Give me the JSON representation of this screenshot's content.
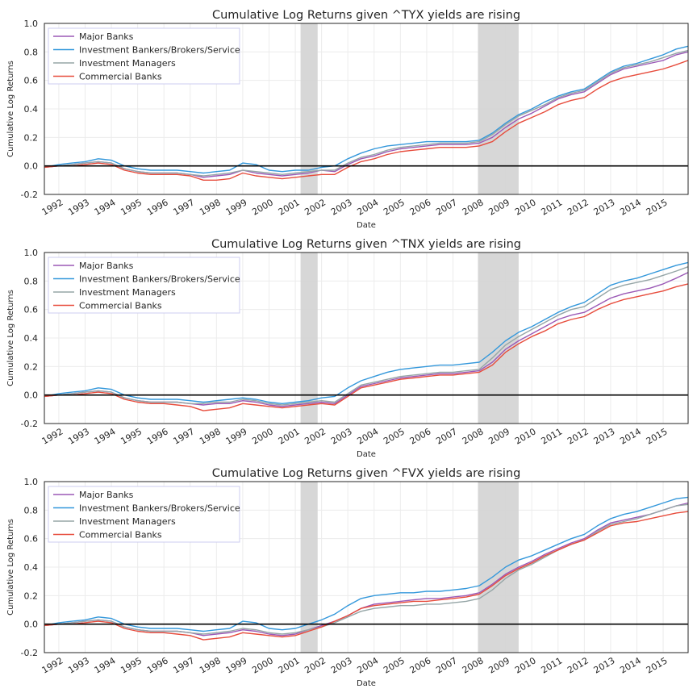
{
  "colors": {
    "major_banks": "#9b59b6",
    "investment_bankers": "#3498db",
    "investment_managers": "#95a5a6",
    "commercial_banks": "#e74c3c",
    "recession_shading": "#d5d5d5",
    "zero_line": "#000000",
    "grid": "#ececec",
    "legend_border": "#ccccf0"
  },
  "chart_data": [
    {
      "type": "line",
      "title": "Cumulative Log Returns given ^TYX yields are rising",
      "xlabel": "Date",
      "ylabel": "Cumulative Log Returns",
      "xlim": [
        1991.45,
        2015.95
      ],
      "ylim": [
        -0.2,
        1.0
      ],
      "yticks": [
        "-0.2",
        "0.0",
        "0.2",
        "0.4",
        "0.6",
        "0.8",
        "1.0"
      ],
      "xticks": [
        "1992",
        "1993",
        "1994",
        "1995",
        "1996",
        "1997",
        "1998",
        "1999",
        "2000",
        "2001",
        "2002",
        "2003",
        "2004",
        "2005",
        "2006",
        "2007",
        "2008",
        "2009",
        "2010",
        "2011",
        "2012",
        "2013",
        "2014",
        "2015"
      ],
      "grid": true,
      "legend_position": "upper-left",
      "reference_line_y": 0.0,
      "shaded_periods": [
        [
          2001.2,
          2001.85
        ],
        [
          2007.95,
          2009.5
        ]
      ],
      "x": [
        1991.45,
        1992.0,
        1992.5,
        1993.0,
        1993.5,
        1994.0,
        1994.5,
        1995.0,
        1995.5,
        1996.0,
        1996.5,
        1997.0,
        1997.5,
        1998.0,
        1998.5,
        1999.0,
        1999.5,
        2000.0,
        2000.5,
        2001.0,
        2001.5,
        2002.0,
        2002.5,
        2003.0,
        2003.5,
        2004.0,
        2004.5,
        2005.0,
        2005.5,
        2006.0,
        2006.5,
        2007.0,
        2007.5,
        2008.0,
        2008.5,
        2009.0,
        2009.5,
        2010.0,
        2010.5,
        2011.0,
        2011.5,
        2012.0,
        2012.5,
        2013.0,
        2013.5,
        2014.0,
        2014.5,
        2015.0,
        2015.5,
        2015.95
      ],
      "series": [
        {
          "name": "Major Banks",
          "values": [
            -0.01,
            0.0,
            0.01,
            0.02,
            0.03,
            0.02,
            -0.02,
            -0.04,
            -0.05,
            -0.05,
            -0.05,
            -0.06,
            -0.08,
            -0.07,
            -0.06,
            -0.03,
            -0.05,
            -0.06,
            -0.07,
            -0.06,
            -0.05,
            -0.03,
            -0.04,
            0.01,
            0.05,
            0.07,
            0.1,
            0.12,
            0.13,
            0.14,
            0.15,
            0.15,
            0.15,
            0.16,
            0.2,
            0.27,
            0.33,
            0.37,
            0.42,
            0.47,
            0.5,
            0.52,
            0.58,
            0.64,
            0.68,
            0.7,
            0.72,
            0.74,
            0.78,
            0.8
          ]
        },
        {
          "name": "Investment Bankers/Brokers/Service",
          "values": [
            -0.01,
            0.01,
            0.02,
            0.03,
            0.05,
            0.04,
            0.0,
            -0.02,
            -0.03,
            -0.03,
            -0.03,
            -0.04,
            -0.05,
            -0.04,
            -0.03,
            0.02,
            0.01,
            -0.03,
            -0.04,
            -0.03,
            -0.03,
            -0.01,
            0.0,
            0.05,
            0.09,
            0.12,
            0.14,
            0.15,
            0.16,
            0.17,
            0.17,
            0.17,
            0.17,
            0.18,
            0.23,
            0.3,
            0.36,
            0.4,
            0.45,
            0.49,
            0.52,
            0.54,
            0.6,
            0.66,
            0.7,
            0.72,
            0.75,
            0.78,
            0.82,
            0.84
          ]
        },
        {
          "name": "Investment Managers",
          "values": [
            -0.01,
            0.0,
            0.01,
            0.02,
            0.03,
            0.02,
            -0.02,
            -0.04,
            -0.05,
            -0.05,
            -0.05,
            -0.06,
            -0.07,
            -0.06,
            -0.05,
            -0.03,
            -0.04,
            -0.05,
            -0.06,
            -0.05,
            -0.04,
            -0.03,
            -0.03,
            0.02,
            0.06,
            0.08,
            0.11,
            0.13,
            0.14,
            0.15,
            0.16,
            0.16,
            0.16,
            0.17,
            0.22,
            0.29,
            0.35,
            0.39,
            0.43,
            0.48,
            0.51,
            0.53,
            0.59,
            0.65,
            0.69,
            0.71,
            0.73,
            0.76,
            0.79,
            0.81
          ]
        },
        {
          "name": "Commercial Banks",
          "values": [
            -0.01,
            0.0,
            0.0,
            0.01,
            0.02,
            0.01,
            -0.03,
            -0.05,
            -0.06,
            -0.06,
            -0.06,
            -0.07,
            -0.1,
            -0.1,
            -0.09,
            -0.05,
            -0.07,
            -0.08,
            -0.09,
            -0.08,
            -0.07,
            -0.06,
            -0.06,
            -0.01,
            0.03,
            0.05,
            0.08,
            0.1,
            0.11,
            0.12,
            0.13,
            0.13,
            0.13,
            0.14,
            0.17,
            0.24,
            0.3,
            0.34,
            0.38,
            0.43,
            0.46,
            0.48,
            0.54,
            0.59,
            0.62,
            0.64,
            0.66,
            0.68,
            0.71,
            0.74
          ]
        }
      ]
    },
    {
      "type": "line",
      "title": "Cumulative Log Returns given ^TNX yields are rising",
      "xlabel": "Date",
      "ylabel": "Cumulative Log Returns",
      "xlim": [
        1991.45,
        2015.95
      ],
      "ylim": [
        -0.2,
        1.0
      ],
      "yticks": [
        "-0.2",
        "0.0",
        "0.2",
        "0.4",
        "0.6",
        "0.8",
        "1.0"
      ],
      "xticks": [
        "1992",
        "1993",
        "1994",
        "1995",
        "1996",
        "1997",
        "1998",
        "1999",
        "2000",
        "2001",
        "2002",
        "2003",
        "2004",
        "2005",
        "2006",
        "2007",
        "2008",
        "2009",
        "2010",
        "2011",
        "2012",
        "2013",
        "2014",
        "2015"
      ],
      "grid": true,
      "legend_position": "upper-left",
      "reference_line_y": 0.0,
      "shaded_periods": [
        [
          2001.2,
          2001.85
        ],
        [
          2007.95,
          2009.5
        ]
      ],
      "x": [
        1991.45,
        1992.0,
        1992.5,
        1993.0,
        1993.5,
        1994.0,
        1994.5,
        1995.0,
        1995.5,
        1996.0,
        1996.5,
        1997.0,
        1997.5,
        1998.0,
        1998.5,
        1999.0,
        1999.5,
        2000.0,
        2000.5,
        2001.0,
        2001.5,
        2002.0,
        2002.5,
        2003.0,
        2003.5,
        2004.0,
        2004.5,
        2005.0,
        2005.5,
        2006.0,
        2006.5,
        2007.0,
        2007.5,
        2008.0,
        2008.5,
        2009.0,
        2009.5,
        2010.0,
        2010.5,
        2011.0,
        2011.5,
        2012.0,
        2012.5,
        2013.0,
        2013.5,
        2014.0,
        2014.5,
        2015.0,
        2015.5,
        2015.95
      ],
      "series": [
        {
          "name": "Major Banks",
          "values": [
            -0.01,
            0.0,
            0.01,
            0.02,
            0.03,
            0.02,
            -0.02,
            -0.04,
            -0.05,
            -0.05,
            -0.05,
            -0.06,
            -0.07,
            -0.06,
            -0.06,
            -0.04,
            -0.05,
            -0.07,
            -0.08,
            -0.07,
            -0.06,
            -0.05,
            -0.06,
            0.0,
            0.06,
            0.08,
            0.1,
            0.12,
            0.13,
            0.14,
            0.15,
            0.15,
            0.16,
            0.17,
            0.23,
            0.32,
            0.38,
            0.43,
            0.48,
            0.53,
            0.56,
            0.58,
            0.63,
            0.68,
            0.71,
            0.73,
            0.75,
            0.78,
            0.82,
            0.86
          ]
        },
        {
          "name": "Investment Bankers/Brokers/Service",
          "values": [
            -0.01,
            0.01,
            0.02,
            0.03,
            0.05,
            0.04,
            0.0,
            -0.02,
            -0.03,
            -0.03,
            -0.03,
            -0.04,
            -0.05,
            -0.04,
            -0.03,
            -0.02,
            -0.03,
            -0.05,
            -0.06,
            -0.05,
            -0.04,
            -0.02,
            -0.01,
            0.05,
            0.1,
            0.13,
            0.16,
            0.18,
            0.19,
            0.2,
            0.21,
            0.21,
            0.22,
            0.23,
            0.3,
            0.38,
            0.44,
            0.48,
            0.53,
            0.58,
            0.62,
            0.65,
            0.71,
            0.77,
            0.8,
            0.82,
            0.85,
            0.88,
            0.91,
            0.93
          ]
        },
        {
          "name": "Investment Managers",
          "values": [
            -0.01,
            0.0,
            0.01,
            0.02,
            0.03,
            0.02,
            -0.02,
            -0.04,
            -0.05,
            -0.05,
            -0.05,
            -0.06,
            -0.06,
            -0.05,
            -0.05,
            -0.03,
            -0.04,
            -0.06,
            -0.07,
            -0.06,
            -0.05,
            -0.04,
            -0.05,
            0.01,
            0.07,
            0.09,
            0.11,
            0.13,
            0.14,
            0.15,
            0.16,
            0.16,
            0.17,
            0.18,
            0.26,
            0.35,
            0.41,
            0.46,
            0.51,
            0.56,
            0.6,
            0.62,
            0.68,
            0.74,
            0.77,
            0.79,
            0.81,
            0.84,
            0.87,
            0.9
          ]
        },
        {
          "name": "Commercial Banks",
          "values": [
            -0.01,
            0.0,
            0.0,
            0.01,
            0.02,
            0.01,
            -0.03,
            -0.05,
            -0.06,
            -0.06,
            -0.07,
            -0.08,
            -0.11,
            -0.1,
            -0.09,
            -0.06,
            -0.07,
            -0.08,
            -0.09,
            -0.08,
            -0.07,
            -0.06,
            -0.07,
            -0.01,
            0.05,
            0.07,
            0.09,
            0.11,
            0.12,
            0.13,
            0.14,
            0.14,
            0.15,
            0.16,
            0.21,
            0.3,
            0.36,
            0.41,
            0.45,
            0.5,
            0.53,
            0.55,
            0.6,
            0.64,
            0.67,
            0.69,
            0.71,
            0.73,
            0.76,
            0.78
          ]
        }
      ]
    },
    {
      "type": "line",
      "title": "Cumulative Log Returns given ^FVX yields are rising",
      "xlabel": "Date",
      "ylabel": "Cumulative Log Returns",
      "xlim": [
        1991.45,
        2015.95
      ],
      "ylim": [
        -0.2,
        1.0
      ],
      "yticks": [
        "-0.2",
        "0.0",
        "0.2",
        "0.4",
        "0.6",
        "0.8",
        "1.0"
      ],
      "xticks": [
        "1992",
        "1993",
        "1994",
        "1995",
        "1996",
        "1997",
        "1998",
        "1999",
        "2000",
        "2001",
        "2002",
        "2003",
        "2004",
        "2005",
        "2006",
        "2007",
        "2008",
        "2009",
        "2010",
        "2011",
        "2012",
        "2013",
        "2014",
        "2015"
      ],
      "grid": true,
      "legend_position": "upper-left",
      "reference_line_y": 0.0,
      "shaded_periods": [
        [
          2001.2,
          2001.85
        ],
        [
          2007.95,
          2009.5
        ]
      ],
      "x": [
        1991.45,
        1992.0,
        1992.5,
        1993.0,
        1993.5,
        1994.0,
        1994.5,
        1995.0,
        1995.5,
        1996.0,
        1996.5,
        1997.0,
        1997.5,
        1998.0,
        1998.5,
        1999.0,
        1999.5,
        2000.0,
        2000.5,
        2001.0,
        2001.5,
        2002.0,
        2002.5,
        2003.0,
        2003.5,
        2004.0,
        2004.5,
        2005.0,
        2005.5,
        2006.0,
        2006.5,
        2007.0,
        2007.5,
        2008.0,
        2008.5,
        2009.0,
        2009.5,
        2010.0,
        2010.5,
        2011.0,
        2011.5,
        2012.0,
        2012.5,
        2013.0,
        2013.5,
        2014.0,
        2014.5,
        2015.0,
        2015.5,
        2015.95
      ],
      "series": [
        {
          "name": "Major Banks",
          "values": [
            -0.01,
            0.0,
            0.01,
            0.02,
            0.03,
            0.02,
            -0.02,
            -0.04,
            -0.05,
            -0.05,
            -0.05,
            -0.06,
            -0.08,
            -0.07,
            -0.06,
            -0.04,
            -0.05,
            -0.07,
            -0.08,
            -0.07,
            -0.04,
            -0.01,
            0.02,
            0.06,
            0.11,
            0.14,
            0.15,
            0.16,
            0.17,
            0.18,
            0.18,
            0.19,
            0.2,
            0.22,
            0.28,
            0.35,
            0.4,
            0.44,
            0.49,
            0.53,
            0.57,
            0.6,
            0.66,
            0.71,
            0.73,
            0.75,
            0.77,
            0.8,
            0.83,
            0.85
          ]
        },
        {
          "name": "Investment Bankers/Brokers/Service",
          "values": [
            -0.01,
            0.01,
            0.02,
            0.03,
            0.05,
            0.04,
            0.0,
            -0.02,
            -0.03,
            -0.03,
            -0.03,
            -0.04,
            -0.05,
            -0.04,
            -0.03,
            0.02,
            0.01,
            -0.03,
            -0.04,
            -0.03,
            0.0,
            0.03,
            0.07,
            0.13,
            0.18,
            0.2,
            0.21,
            0.22,
            0.22,
            0.23,
            0.23,
            0.24,
            0.25,
            0.27,
            0.33,
            0.4,
            0.45,
            0.48,
            0.52,
            0.56,
            0.6,
            0.63,
            0.69,
            0.74,
            0.77,
            0.79,
            0.82,
            0.85,
            0.88,
            0.89
          ]
        },
        {
          "name": "Investment Managers",
          "values": [
            -0.01,
            0.0,
            0.01,
            0.02,
            0.03,
            0.02,
            -0.02,
            -0.04,
            -0.05,
            -0.05,
            -0.05,
            -0.06,
            -0.07,
            -0.06,
            -0.05,
            -0.03,
            -0.04,
            -0.06,
            -0.07,
            -0.06,
            -0.04,
            -0.02,
            0.01,
            0.05,
            0.09,
            0.11,
            0.12,
            0.13,
            0.13,
            0.14,
            0.14,
            0.15,
            0.16,
            0.18,
            0.24,
            0.32,
            0.38,
            0.42,
            0.47,
            0.52,
            0.56,
            0.59,
            0.65,
            0.7,
            0.72,
            0.74,
            0.77,
            0.8,
            0.83,
            0.84
          ]
        },
        {
          "name": "Commercial Banks",
          "values": [
            -0.01,
            0.0,
            0.0,
            0.01,
            0.02,
            0.01,
            -0.03,
            -0.05,
            -0.06,
            -0.06,
            -0.07,
            -0.08,
            -0.11,
            -0.1,
            -0.09,
            -0.06,
            -0.07,
            -0.08,
            -0.09,
            -0.08,
            -0.05,
            -0.02,
            0.02,
            0.06,
            0.11,
            0.13,
            0.14,
            0.15,
            0.16,
            0.16,
            0.17,
            0.18,
            0.19,
            0.21,
            0.27,
            0.34,
            0.39,
            0.43,
            0.48,
            0.52,
            0.56,
            0.59,
            0.64,
            0.69,
            0.71,
            0.72,
            0.74,
            0.76,
            0.78,
            0.79
          ]
        }
      ]
    }
  ]
}
